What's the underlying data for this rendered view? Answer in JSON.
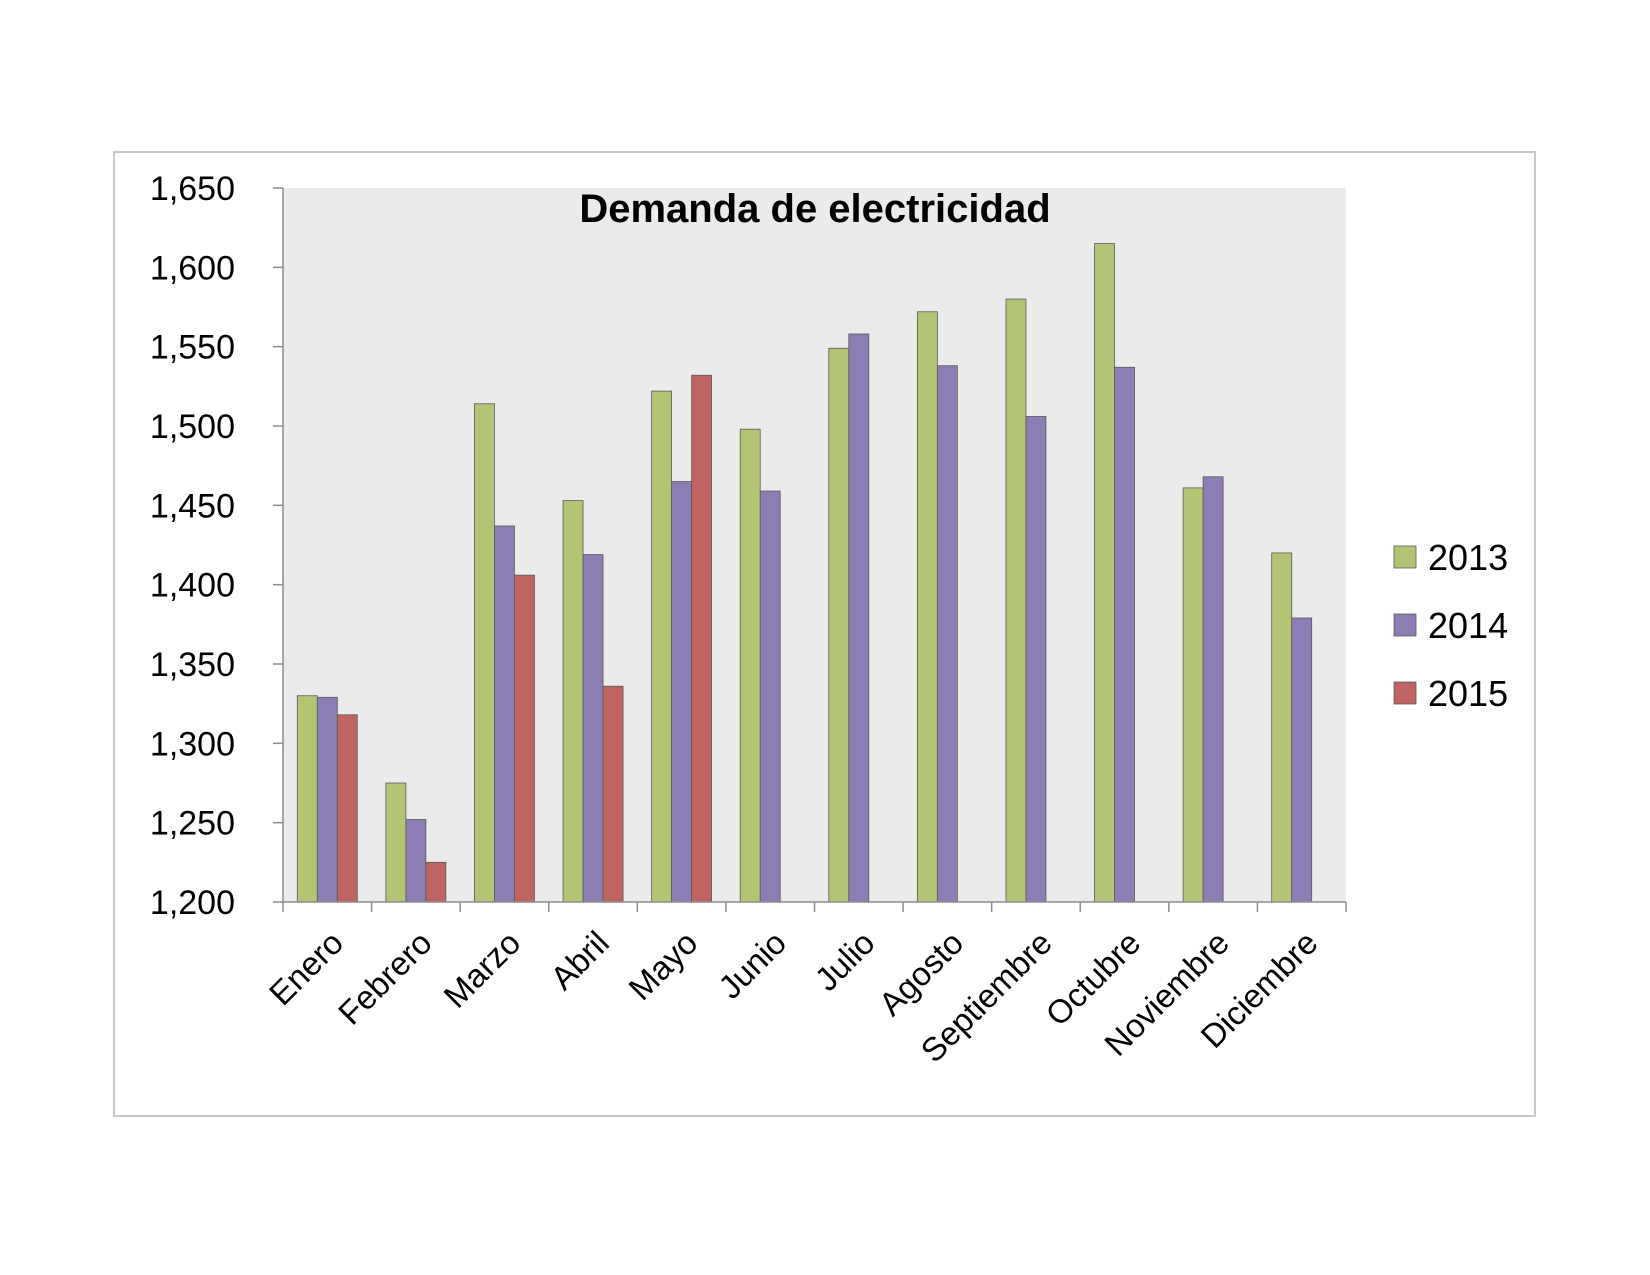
{
  "chart_data": {
    "type": "bar",
    "title": "Demanda de electricidad",
    "xlabel": "",
    "ylabel": "",
    "ylim": [
      1200,
      1650
    ],
    "yticks": [
      1200,
      1250,
      1300,
      1350,
      1400,
      1450,
      1500,
      1550,
      1600,
      1650
    ],
    "ytick_labels": [
      "1,200",
      "1,250",
      "1,300",
      "1,350",
      "1,400",
      "1,450",
      "1,500",
      "1,550",
      "1,600",
      "1,650"
    ],
    "categories": [
      "Enero",
      "Febrero",
      "Marzo",
      "Abril",
      "Mayo",
      "Junio",
      "Julio",
      "Agosto",
      "Septiembre",
      "Octubre",
      "Noviembre",
      "Diciembre"
    ],
    "series": [
      {
        "name": "2013",
        "color": "#b3c475",
        "values": [
          1330,
          1275,
          1514,
          1453,
          1522,
          1498,
          1549,
          1572,
          1580,
          1615,
          1461,
          1420
        ]
      },
      {
        "name": "2014",
        "color": "#8d7db5",
        "values": [
          1329,
          1252,
          1437,
          1419,
          1465,
          1459,
          1558,
          1538,
          1506,
          1537,
          1468,
          1379
        ]
      },
      {
        "name": "2015",
        "color": "#bf6461",
        "values": [
          1318,
          1225,
          1406,
          1336,
          1532,
          null,
          null,
          null,
          null,
          null,
          null,
          null
        ]
      }
    ],
    "grid": false,
    "plot_background": "#ebebeb",
    "legend_position": "right"
  }
}
